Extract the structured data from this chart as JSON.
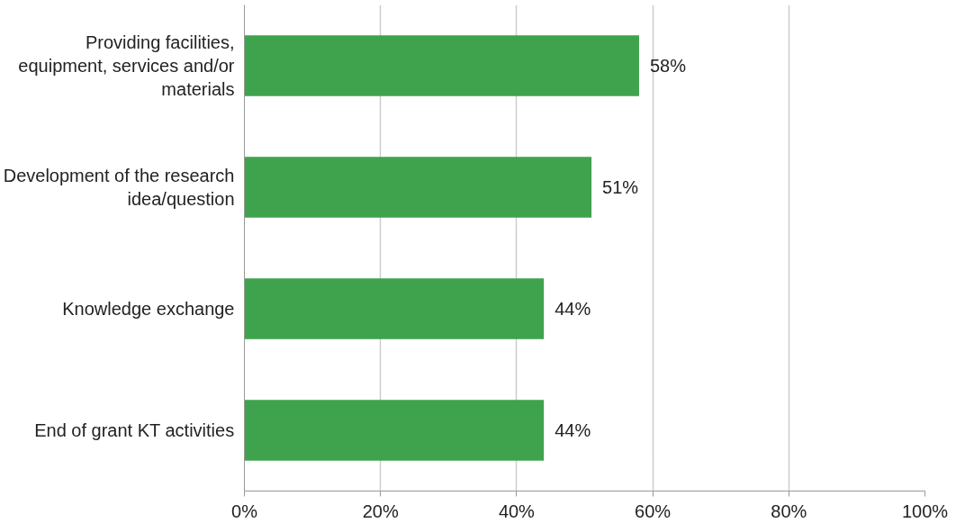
{
  "chart_data": {
    "type": "bar",
    "orientation": "horizontal",
    "categories": [
      "Providing facilities, equipment, services and/or materials",
      "Development of the research idea/question",
      "Knowledge exchange",
      "End of grant KT activities"
    ],
    "values": [
      58,
      51,
      44,
      44
    ],
    "value_labels": [
      "58%",
      "51%",
      "44%",
      "44%"
    ],
    "color": "#3fa34d",
    "xlim": [
      0,
      100
    ],
    "xticks": [
      {
        "value": 0,
        "label": "0%"
      },
      {
        "value": 20,
        "label": "20%"
      },
      {
        "value": 40,
        "label": "40%"
      },
      {
        "value": 60,
        "label": "60%"
      },
      {
        "value": 80,
        "label": "80%"
      },
      {
        "value": 100,
        "label": "100%"
      }
    ],
    "grid": "x"
  }
}
